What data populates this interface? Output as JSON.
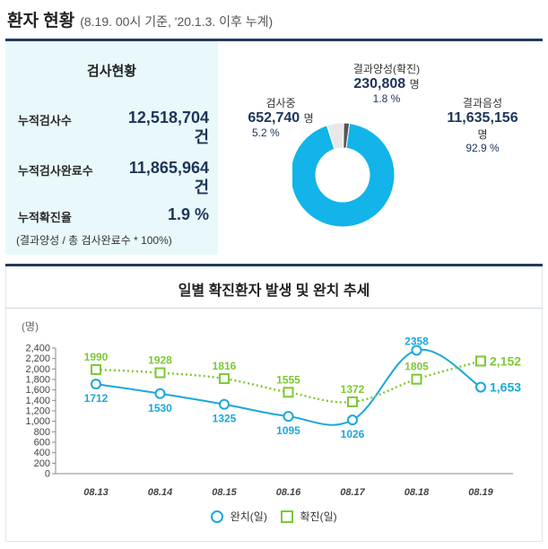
{
  "header": {
    "title": "환자 현황",
    "subtitle": "(8.19. 00시 기준, '20.1.3. 이후 누계)"
  },
  "summary": {
    "title": "검사현황",
    "rows": [
      {
        "label": "누적검사수",
        "value": "12,518,704",
        "unit": "건"
      },
      {
        "label": "누적검사완료수",
        "value": "11,865,964",
        "unit": "건"
      },
      {
        "label": "누적확진율",
        "value": "1.9 %",
        "unit": ""
      }
    ],
    "note": "(결과양성 / 총 검사완료수 * 100%)"
  },
  "donut": {
    "colors": {
      "negative": "#12b4e9",
      "testing": "#e8e8e8",
      "positive": "#555555"
    },
    "positive": {
      "label": "결과양성(확진)",
      "value": "230,808",
      "unit": "명",
      "pct": "1.8 %",
      "share": 1.8
    },
    "testing": {
      "label": "검사중",
      "value": "652,740",
      "unit": "명",
      "pct": "5.2 %",
      "share": 5.2
    },
    "negative": {
      "label": "결과음성",
      "value": "11,635,156",
      "unit": "명",
      "pct": "92.9 %",
      "share": 92.9
    }
  },
  "chart_data": {
    "type": "line",
    "title": "일별 확진환자 발생 및 완치 추세",
    "ylabel": "(명)",
    "ylim": [
      0,
      2400
    ],
    "yticks": [
      0,
      200,
      400,
      600,
      800,
      1000,
      1200,
      1400,
      1600,
      1800,
      2000,
      2200,
      2400
    ],
    "categories": [
      "08.13",
      "08.14",
      "08.15",
      "08.16",
      "08.17",
      "08.18",
      "08.19"
    ],
    "series": [
      {
        "name": "완치(일)",
        "color": "#19a8d9",
        "marker": "circle",
        "style": "solid",
        "values": [
          1712,
          1530,
          1325,
          1095,
          1026,
          2358,
          1653
        ]
      },
      {
        "name": "확진(일)",
        "color": "#7cc934",
        "marker": "square",
        "style": "dotted",
        "values": [
          1990,
          1928,
          1816,
          1555,
          1372,
          1805,
          2152
        ]
      }
    ],
    "data_labels": {
      "완치(일)": [
        "1712",
        "1530",
        "1325",
        "1095",
        "1026",
        "2358",
        "1,653"
      ],
      "확진(일)": [
        "1990",
        "1928",
        "1816",
        "1555",
        "1372",
        "1805",
        "2,152"
      ]
    },
    "grid": false,
    "legend": "bottom"
  }
}
